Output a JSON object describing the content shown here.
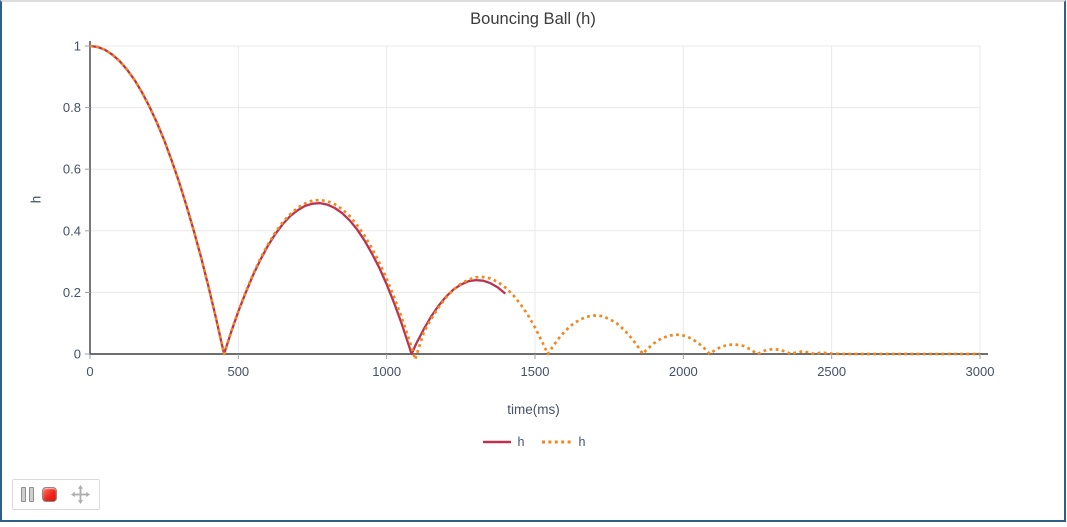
{
  "page": {
    "border_color": "#2e5f86"
  },
  "toolbar": {
    "buttons": [
      {
        "name": "pause",
        "icon": "pause-icon"
      },
      {
        "name": "stop",
        "icon": "stop-icon",
        "color": "#e8291f"
      },
      {
        "name": "move",
        "icon": "move-icon"
      }
    ]
  },
  "chart_data": {
    "type": "line",
    "title": "Bouncing Ball (h)",
    "xlabel": "time(ms)",
    "ylabel": "h",
    "xlim": [
      0,
      3000
    ],
    "ylim": [
      0,
      1
    ],
    "grid": true,
    "legend_position": "bottom-center",
    "x_ticks": {
      "values": [
        0,
        500,
        1000,
        1500,
        2000,
        2500,
        3000
      ],
      "labels": [
        "0",
        "500",
        "1000",
        "1500",
        "2000",
        "2500",
        "3000"
      ]
    },
    "y_ticks": {
      "values": [
        0,
        0.2,
        0.4,
        0.6,
        0.8,
        1
      ],
      "labels": [
        "0",
        "0.2",
        "0.4",
        "0.6",
        "0.8",
        "1"
      ]
    },
    "colors": {
      "axis": "#3f3f3f",
      "tick_label": "#445169",
      "grid": "#e9e9e9"
    },
    "legend": [
      {
        "label": "h",
        "style": "solid",
        "color": "#b93351"
      },
      {
        "label": "h",
        "style": "dotted",
        "color": "#f2871d"
      }
    ],
    "series": [
      {
        "name": "h",
        "color": "#b93351",
        "dash": "solid",
        "width": 2.3,
        "points": [
          [
            0,
            1
          ],
          [
            25,
            0.997
          ],
          [
            50,
            0.988
          ],
          [
            75,
            0.972
          ],
          [
            100,
            0.951
          ],
          [
            125,
            0.923
          ],
          [
            150,
            0.89
          ],
          [
            175,
            0.85
          ],
          [
            200,
            0.804
          ],
          [
            225,
            0.752
          ],
          [
            250,
            0.694
          ],
          [
            275,
            0.629
          ],
          [
            300,
            0.559
          ],
          [
            325,
            0.482
          ],
          [
            350,
            0.4
          ],
          [
            375,
            0.311
          ],
          [
            400,
            0.216
          ],
          [
            425,
            0.115
          ],
          [
            450,
            0.008
          ],
          [
            452,
            0
          ],
          [
            475,
            0.069
          ],
          [
            500,
            0.138
          ],
          [
            525,
            0.2
          ],
          [
            550,
            0.257
          ],
          [
            575,
            0.307
          ],
          [
            600,
            0.352
          ],
          [
            625,
            0.39
          ],
          [
            650,
            0.422
          ],
          [
            675,
            0.448
          ],
          [
            700,
            0.467
          ],
          [
            725,
            0.481
          ],
          [
            750,
            0.488
          ],
          [
            775,
            0.49
          ],
          [
            800,
            0.485
          ],
          [
            825,
            0.474
          ],
          [
            850,
            0.457
          ],
          [
            875,
            0.434
          ],
          [
            900,
            0.405
          ],
          [
            925,
            0.369
          ],
          [
            950,
            0.327
          ],
          [
            975,
            0.28
          ],
          [
            1000,
            0.226
          ],
          [
            1025,
            0.166
          ],
          [
            1050,
            0.1
          ],
          [
            1075,
            0.027
          ],
          [
            1084,
            0
          ],
          [
            1100,
            0.034
          ],
          [
            1125,
            0.081
          ],
          [
            1150,
            0.122
          ],
          [
            1175,
            0.157
          ],
          [
            1200,
            0.186
          ],
          [
            1225,
            0.209
          ],
          [
            1250,
            0.225
          ],
          [
            1275,
            0.236
          ],
          [
            1300,
            0.24
          ],
          [
            1325,
            0.238
          ],
          [
            1350,
            0.23
          ],
          [
            1375,
            0.216
          ],
          [
            1400,
            0.196
          ]
        ]
      },
      {
        "name": "h",
        "color": "#f2871d",
        "dash": "dotted",
        "width": 2.7,
        "points": [
          [
            0,
            1
          ],
          [
            25,
            0.997
          ],
          [
            50,
            0.988
          ],
          [
            75,
            0.972
          ],
          [
            100,
            0.951
          ],
          [
            125,
            0.923
          ],
          [
            150,
            0.89
          ],
          [
            175,
            0.85
          ],
          [
            200,
            0.804
          ],
          [
            225,
            0.752
          ],
          [
            250,
            0.694
          ],
          [
            275,
            0.629
          ],
          [
            300,
            0.559
          ],
          [
            325,
            0.482
          ],
          [
            350,
            0.4
          ],
          [
            375,
            0.311
          ],
          [
            400,
            0.216
          ],
          [
            425,
            0.115
          ],
          [
            450,
            0.008
          ],
          [
            452,
            0
          ],
          [
            475,
            0.069
          ],
          [
            500,
            0.139
          ],
          [
            525,
            0.202
          ],
          [
            550,
            0.26
          ],
          [
            575,
            0.311
          ],
          [
            600,
            0.356
          ],
          [
            625,
            0.395
          ],
          [
            650,
            0.428
          ],
          [
            675,
            0.454
          ],
          [
            700,
            0.475
          ],
          [
            725,
            0.489
          ],
          [
            750,
            0.498
          ],
          [
            775,
            0.5
          ],
          [
            800,
            0.496
          ],
          [
            825,
            0.486
          ],
          [
            850,
            0.47
          ],
          [
            875,
            0.448
          ],
          [
            900,
            0.419
          ],
          [
            925,
            0.385
          ],
          [
            950,
            0.344
          ],
          [
            975,
            0.297
          ],
          [
            1000,
            0.244
          ],
          [
            1025,
            0.185
          ],
          [
            1050,
            0.12
          ],
          [
            1075,
            0.049
          ],
          [
            1091,
            0
          ],
          [
            1096,
            -0.018
          ],
          [
            1102,
            0
          ],
          [
            1125,
            0.07
          ],
          [
            1150,
            0.114
          ],
          [
            1175,
            0.151
          ],
          [
            1200,
            0.183
          ],
          [
            1225,
            0.209
          ],
          [
            1250,
            0.228
          ],
          [
            1275,
            0.241
          ],
          [
            1300,
            0.249
          ],
          [
            1325,
            0.25
          ],
          [
            1350,
            0.245
          ],
          [
            1375,
            0.234
          ],
          [
            1400,
            0.216
          ],
          [
            1425,
            0.193
          ],
          [
            1450,
            0.163
          ],
          [
            1475,
            0.128
          ],
          [
            1500,
            0.086
          ],
          [
            1525,
            0.038
          ],
          [
            1543,
            0
          ],
          [
            1575,
            0.045
          ],
          [
            1600,
            0.073
          ],
          [
            1625,
            0.095
          ],
          [
            1650,
            0.111
          ],
          [
            1675,
            0.121
          ],
          [
            1700,
            0.125
          ],
          [
            1725,
            0.123
          ],
          [
            1750,
            0.114
          ],
          [
            1775,
            0.1
          ],
          [
            1800,
            0.079
          ],
          [
            1825,
            0.052
          ],
          [
            1850,
            0.02
          ],
          [
            1863,
            0
          ],
          [
            1875,
            0.013
          ],
          [
            1900,
            0.034
          ],
          [
            1925,
            0.05
          ],
          [
            1950,
            0.059
          ],
          [
            1975,
            0.063
          ],
          [
            2000,
            0.06
          ],
          [
            2025,
            0.051
          ],
          [
            2050,
            0.036
          ],
          [
            2075,
            0.015
          ],
          [
            2089,
            0
          ],
          [
            2100,
            0.008
          ],
          [
            2125,
            0.022
          ],
          [
            2150,
            0.03
          ],
          [
            2175,
            0.031
          ],
          [
            2200,
            0.027
          ],
          [
            2225,
            0.016
          ],
          [
            2249,
            0
          ],
          [
            2275,
            0.011
          ],
          [
            2300,
            0.016
          ],
          [
            2325,
            0.014
          ],
          [
            2350,
            0.006
          ],
          [
            2362,
            0
          ],
          [
            2375,
            0.004
          ],
          [
            2400,
            0.008
          ],
          [
            2425,
            0.005
          ],
          [
            2442,
            0
          ],
          [
            2460,
            0.004
          ],
          [
            2475,
            0.004
          ],
          [
            2490,
            0.002
          ],
          [
            2500,
            0.001
          ],
          [
            2550,
            0
          ],
          [
            2600,
            0
          ],
          [
            2650,
            0
          ],
          [
            2700,
            0
          ],
          [
            2750,
            0
          ],
          [
            2800,
            0
          ],
          [
            2850,
            0
          ],
          [
            2900,
            0
          ],
          [
            2950,
            0
          ],
          [
            3000,
            0
          ]
        ]
      }
    ]
  }
}
